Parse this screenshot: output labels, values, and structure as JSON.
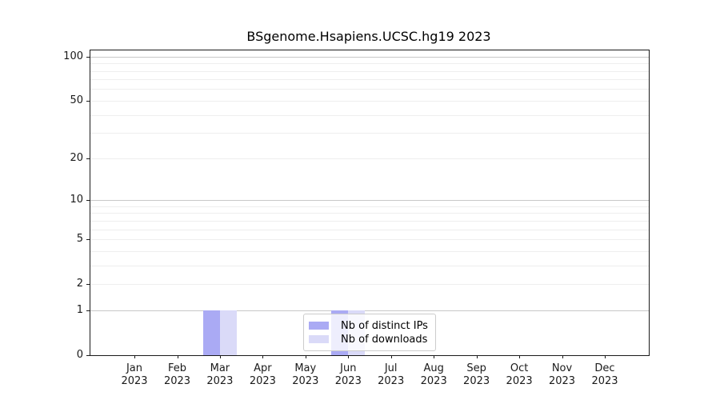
{
  "chart_data": {
    "type": "bar",
    "title": "BSgenome.Hsapiens.UCSC.hg19 2023",
    "categories": [
      "Jan",
      "Feb",
      "Mar",
      "Apr",
      "May",
      "Jun",
      "Jul",
      "Aug",
      "Sep",
      "Oct",
      "Nov",
      "Dec"
    ],
    "category_year": "2023",
    "series": [
      {
        "name": "Nb of distinct IPs",
        "color": "#aaaaf4",
        "values": [
          0,
          0,
          1,
          0,
          0,
          1,
          0,
          0,
          0,
          0,
          0,
          0
        ]
      },
      {
        "name": "Nb of downloads",
        "color": "#dadaf8",
        "values": [
          0,
          0,
          1,
          0,
          0,
          1,
          0,
          0,
          0,
          0,
          0,
          0
        ]
      }
    ],
    "xlabel": "",
    "ylabel": "",
    "yscale": "log1p",
    "ylim": [
      0,
      110
    ],
    "yticks": [
      100,
      50,
      20,
      10,
      5,
      2,
      1,
      0
    ],
    "grid_minor": [
      2,
      3,
      4,
      5,
      6,
      7,
      8,
      9,
      20,
      30,
      40,
      50,
      60,
      70,
      80,
      90
    ],
    "grid_major": [
      1,
      10,
      100
    ],
    "legend": {
      "position": "inside-bottom-center-left",
      "entries": [
        "Nb of distinct IPs",
        "Nb of downloads"
      ]
    },
    "colors": {
      "bar_distinct_ips": "#aaaaf4",
      "bar_downloads": "#dadaf8",
      "grid_major": "#c8c8c8",
      "grid_minor": "#eeeeee",
      "axis": "#1a1a1a",
      "background": "#ffffff"
    }
  }
}
